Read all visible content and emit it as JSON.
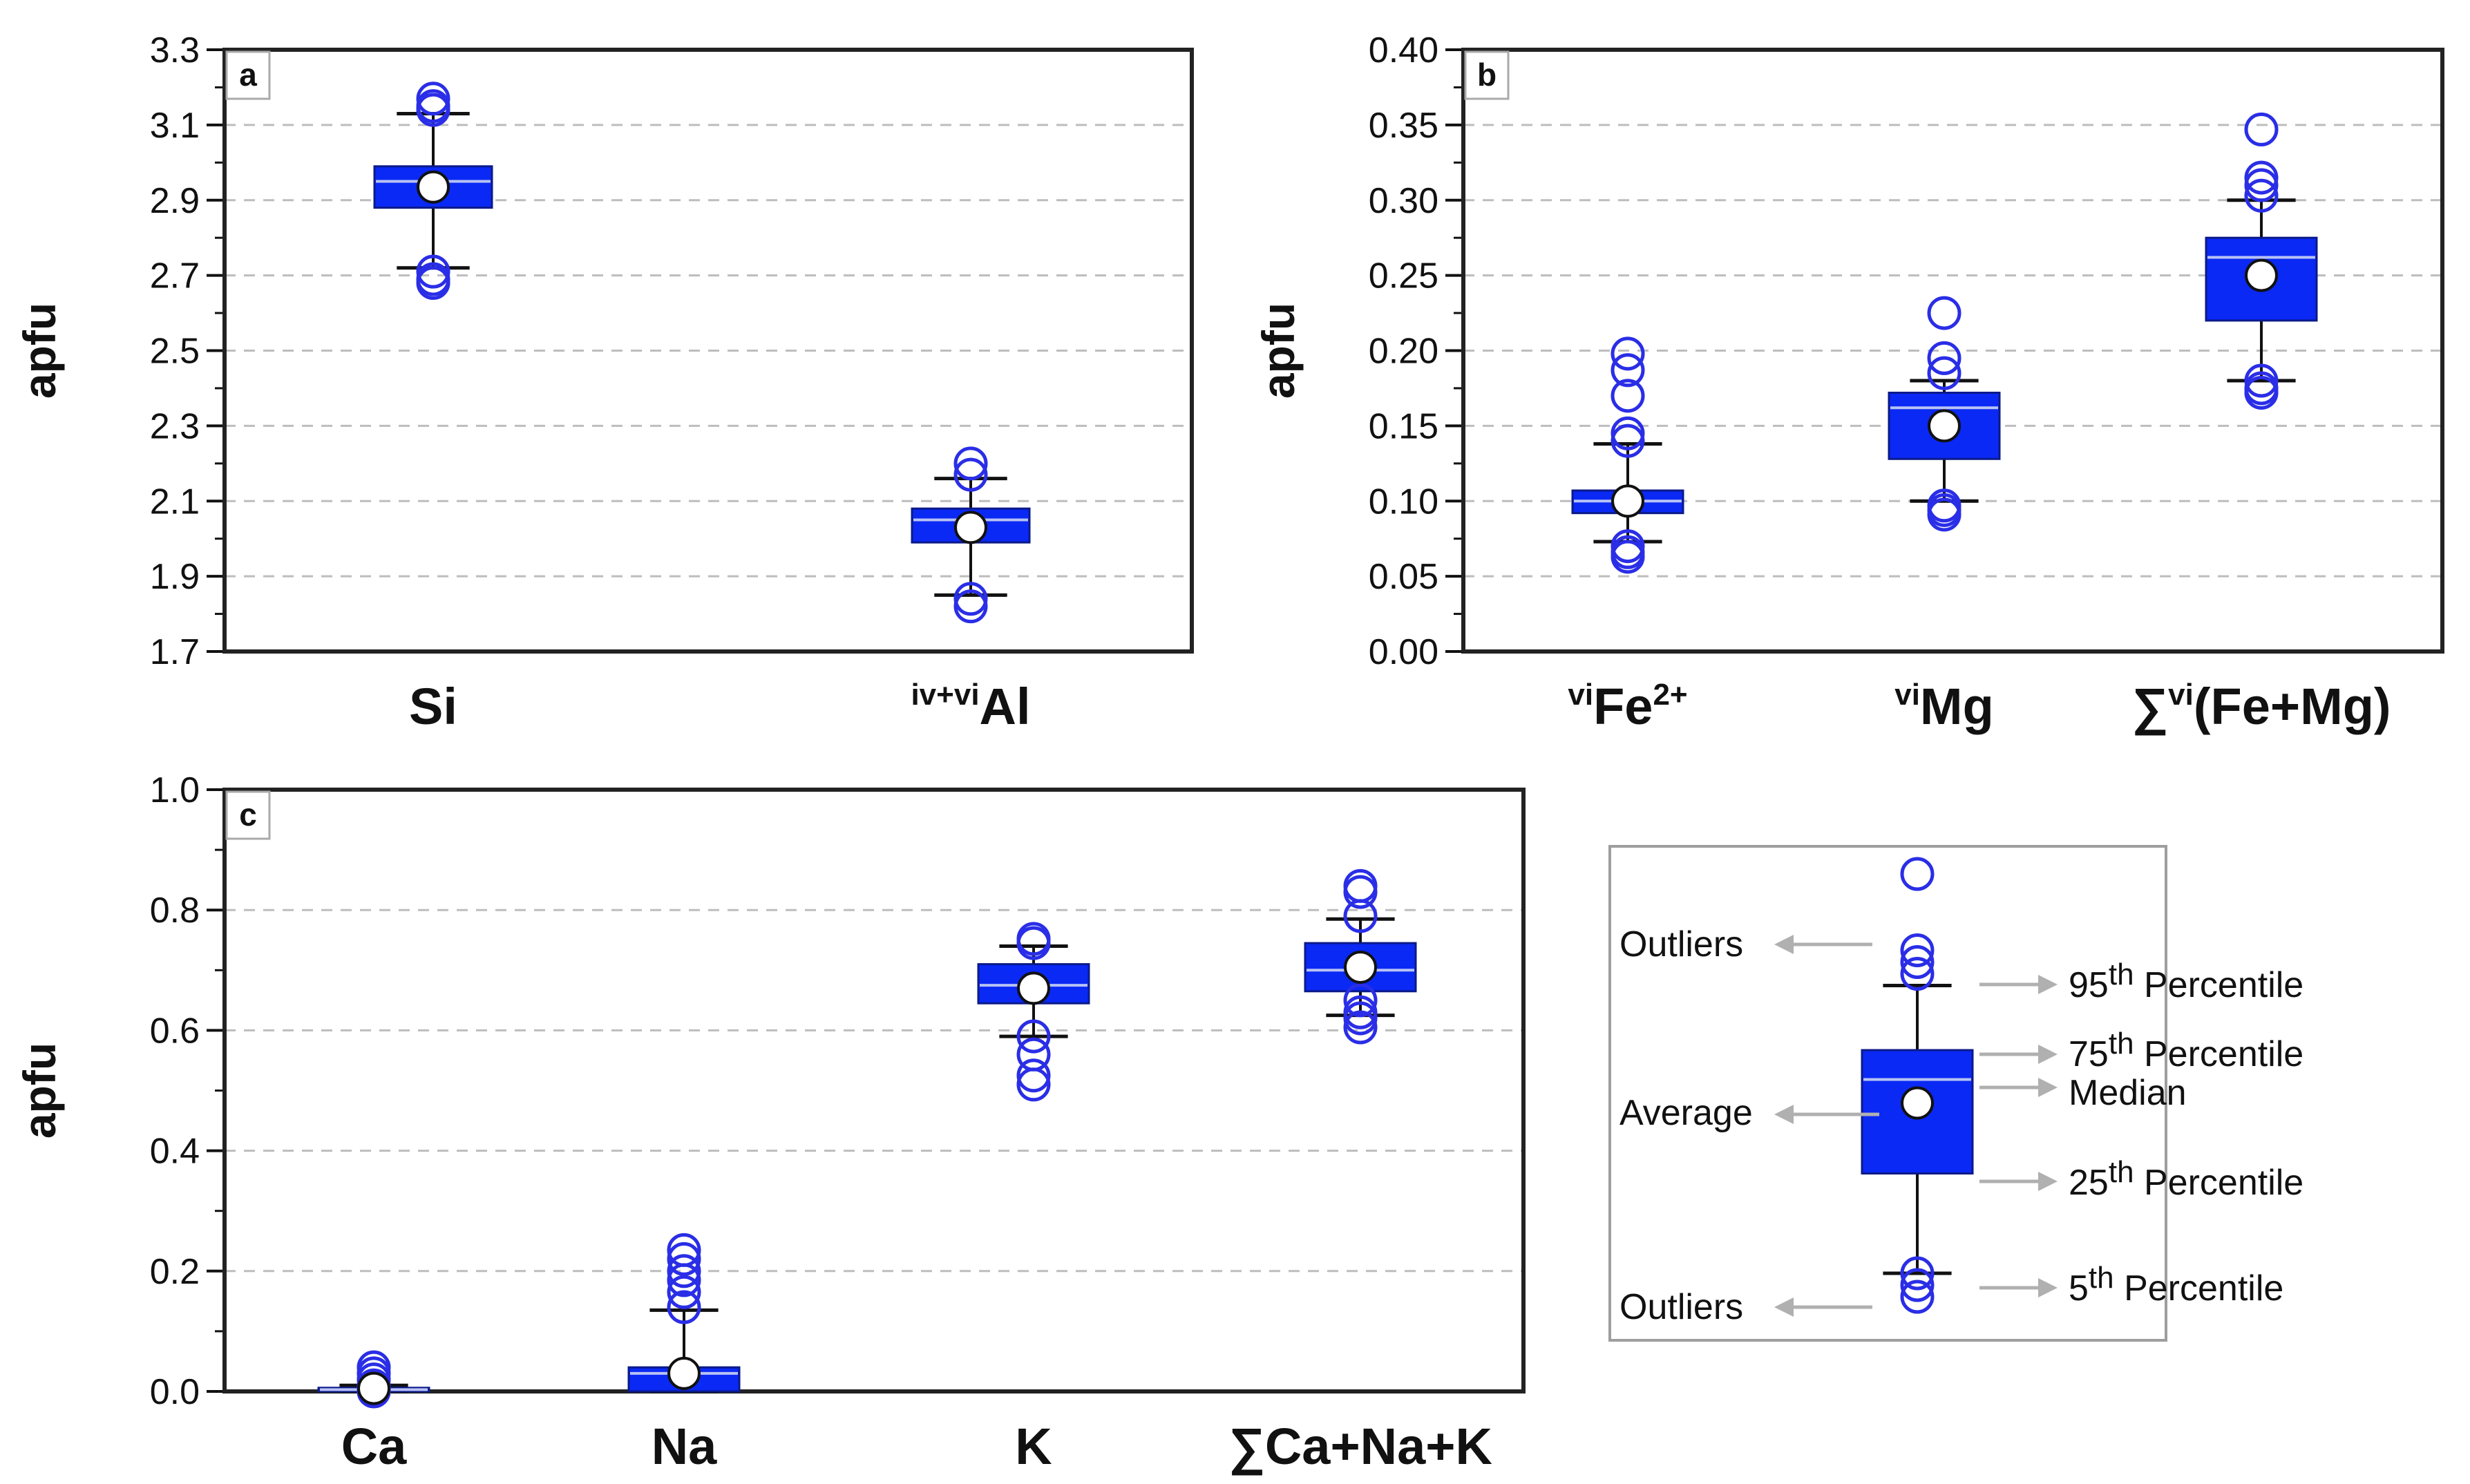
{
  "colors": {
    "box": "#0a29f5",
    "outlier": "#2a2ee6",
    "median": "#b8c2f4",
    "axis": "#222222",
    "grid": "#bdbdbd",
    "arrow": "#b0b0b0"
  },
  "chart_data": [
    {
      "panel": "a",
      "type": "box",
      "ylabel": "apfu",
      "ylim": [
        1.7,
        3.3
      ],
      "yticks": [
        "1.7",
        "1.9",
        "2.1",
        "2.3",
        "2.5",
        "2.7",
        "2.9",
        "3.1",
        "3.3"
      ],
      "grid": true,
      "categories": [
        {
          "pre": "",
          "sup": "",
          "main": "Si",
          "post_sup": ""
        },
        {
          "pre": "",
          "sup": "iv+vi",
          "main": "Al",
          "post_sup": ""
        }
      ],
      "boxes": [
        {
          "p5": 2.72,
          "q1": 2.88,
          "median": 2.95,
          "q3": 2.99,
          "p95": 3.13,
          "mean": 2.935,
          "outliers": [
            3.17,
            3.15,
            3.14,
            2.71,
            2.69,
            2.68
          ]
        },
        {
          "p5": 1.85,
          "q1": 1.99,
          "median": 2.05,
          "q3": 2.08,
          "p95": 2.16,
          "mean": 2.03,
          "outliers": [
            2.2,
            2.17,
            1.84,
            1.82
          ]
        }
      ]
    },
    {
      "panel": "b",
      "type": "box",
      "ylabel": "apfu",
      "ylim": [
        0.0,
        0.4
      ],
      "yticks": [
        "0.00",
        "0.05",
        "0.10",
        "0.15",
        "0.20",
        "0.25",
        "0.30",
        "0.35",
        "0.40"
      ],
      "grid": true,
      "categories": [
        {
          "pre": "",
          "sup": "vi",
          "main": "Fe",
          "post_sup": "2+"
        },
        {
          "pre": "",
          "sup": "vi",
          "main": "Mg",
          "post_sup": ""
        },
        {
          "pre": "∑",
          "sup": "vi",
          "main": "(Fe+Mg)",
          "post_sup": ""
        }
      ],
      "boxes": [
        {
          "p5": 0.073,
          "q1": 0.092,
          "median": 0.1,
          "q3": 0.107,
          "p95": 0.138,
          "mean": 0.1,
          "outliers": [
            0.198,
            0.187,
            0.17,
            0.145,
            0.14,
            0.07,
            0.066,
            0.063
          ]
        },
        {
          "p5": 0.1,
          "q1": 0.128,
          "median": 0.162,
          "q3": 0.172,
          "p95": 0.18,
          "mean": 0.15,
          "outliers": [
            0.225,
            0.195,
            0.185,
            0.097,
            0.094,
            0.091
          ]
        },
        {
          "p5": 0.18,
          "q1": 0.22,
          "median": 0.262,
          "q3": 0.275,
          "p95": 0.3,
          "mean": 0.25,
          "outliers": [
            0.347,
            0.315,
            0.31,
            0.303,
            0.18,
            0.175,
            0.172
          ]
        }
      ]
    },
    {
      "panel": "c",
      "type": "box",
      "ylabel": "apfu",
      "ylim": [
        0.0,
        1.0
      ],
      "yticks": [
        "0.0",
        "0.2",
        "0.4",
        "0.6",
        "0.8",
        "1.0"
      ],
      "grid": true,
      "categories": [
        {
          "pre": "",
          "sup": "",
          "main": "Ca",
          "post_sup": ""
        },
        {
          "pre": "",
          "sup": "",
          "main": "Na",
          "post_sup": ""
        },
        {
          "pre": "",
          "sup": "",
          "main": "K",
          "post_sup": ""
        },
        {
          "pre": "∑",
          "sup": "",
          "main": "Ca+Na+K",
          "post_sup": ""
        }
      ],
      "boxes": [
        {
          "p5": 0.0,
          "q1": 0.0,
          "median": 0.003,
          "q3": 0.006,
          "p95": 0.01,
          "mean": 0.005,
          "outliers": [
            0.04,
            0.03,
            0.02,
            0.01,
            0.005,
            0.0
          ]
        },
        {
          "p5": 0.0,
          "q1": 0.0,
          "median": 0.03,
          "q3": 0.04,
          "p95": 0.135,
          "mean": 0.03,
          "outliers": [
            0.235,
            0.22,
            0.2,
            0.185,
            0.165,
            0.14
          ]
        },
        {
          "p5": 0.59,
          "q1": 0.645,
          "median": 0.675,
          "q3": 0.71,
          "p95": 0.74,
          "mean": 0.67,
          "outliers": [
            0.752,
            0.745,
            0.59,
            0.56,
            0.525,
            0.51
          ]
        },
        {
          "p5": 0.625,
          "q1": 0.665,
          "median": 0.7,
          "q3": 0.745,
          "p95": 0.785,
          "mean": 0.705,
          "outliers": [
            0.84,
            0.83,
            0.79,
            0.65,
            0.63,
            0.62,
            0.605
          ]
        }
      ]
    }
  ],
  "legend": {
    "ylim": [
      0.0,
      1.0
    ],
    "box": {
      "p5": 0.18,
      "q1": 0.35,
      "median": 0.51,
      "q3": 0.56,
      "p95": 0.67,
      "mean": 0.47,
      "outliers": [
        0.86,
        0.73,
        0.71,
        0.69,
        0.18,
        0.16,
        0.14
      ]
    },
    "labels": {
      "outliers_top": "Outliers",
      "average": "Average",
      "outliers_bottom": "Outliers",
      "p95_pre": "95",
      "p95_sup": "th",
      "p95_post": " Percentile",
      "p75_pre": "75",
      "p75_sup": "th",
      "p75_post": " Percentile",
      "median": "Median",
      "p25_pre": "25",
      "p25_sup": "th",
      "p25_post": " Percentile",
      "p5_pre": "5",
      "p5_sup": "th",
      "p5_post": " Percentile"
    }
  }
}
